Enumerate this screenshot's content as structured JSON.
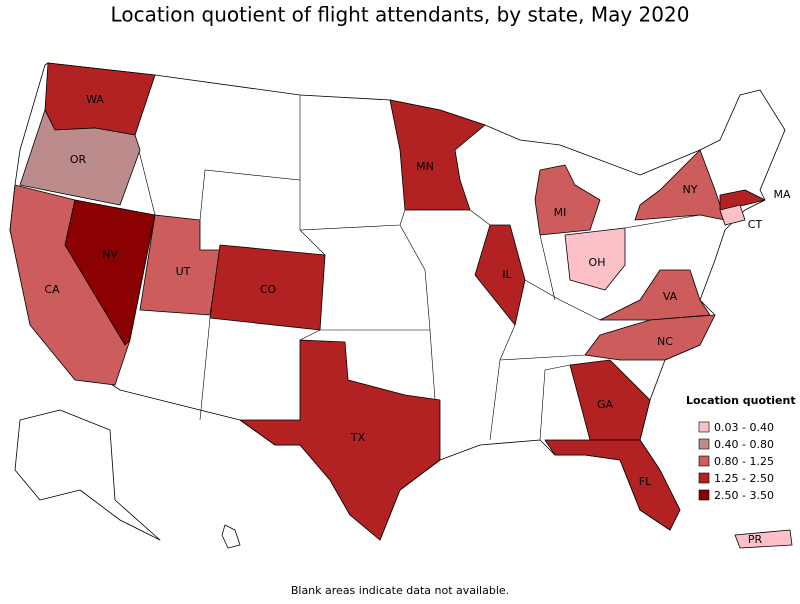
{
  "title": "Location quotient of flight attendants, by state, May 2020",
  "legend": {
    "title": "Location quotient",
    "items": [
      {
        "label": "0.03 - 0.40",
        "color": "#fbc0c8"
      },
      {
        "label": "0.40 - 0.80",
        "color": "#bc8c8c"
      },
      {
        "label": "0.80 - 1.25",
        "color": "#cd5c5c"
      },
      {
        "label": "1.25 - 2.50",
        "color": "#b22222"
      },
      {
        "label": "2.50 - 3.50",
        "color": "#8b0000"
      }
    ]
  },
  "states": [
    {
      "abbr": "WA",
      "color": "#b22222"
    },
    {
      "abbr": "OR",
      "color": "#bc8c8c"
    },
    {
      "abbr": "CA",
      "color": "#cd5c5c"
    },
    {
      "abbr": "NV",
      "color": "#8b0000"
    },
    {
      "abbr": "UT",
      "color": "#cd5c5c"
    },
    {
      "abbr": "CO",
      "color": "#b22222"
    },
    {
      "abbr": "MN",
      "color": "#b22222"
    },
    {
      "abbr": "IL",
      "color": "#b22222"
    },
    {
      "abbr": "MI",
      "color": "#cd5c5c"
    },
    {
      "abbr": "OH",
      "color": "#fbc0c8"
    },
    {
      "abbr": "NY",
      "color": "#cd5c5c"
    },
    {
      "abbr": "MA",
      "color": "#b22222"
    },
    {
      "abbr": "CT",
      "color": "#fbc0c8"
    },
    {
      "abbr": "VA",
      "color": "#cd5c5c"
    },
    {
      "abbr": "NC",
      "color": "#cd5c5c"
    },
    {
      "abbr": "GA",
      "color": "#b22222"
    },
    {
      "abbr": "FL",
      "color": "#b22222"
    },
    {
      "abbr": "TX",
      "color": "#b22222"
    },
    {
      "abbr": "PR",
      "color": "#fbc0c8"
    }
  ],
  "footnote": "Blank areas indicate data not available."
}
